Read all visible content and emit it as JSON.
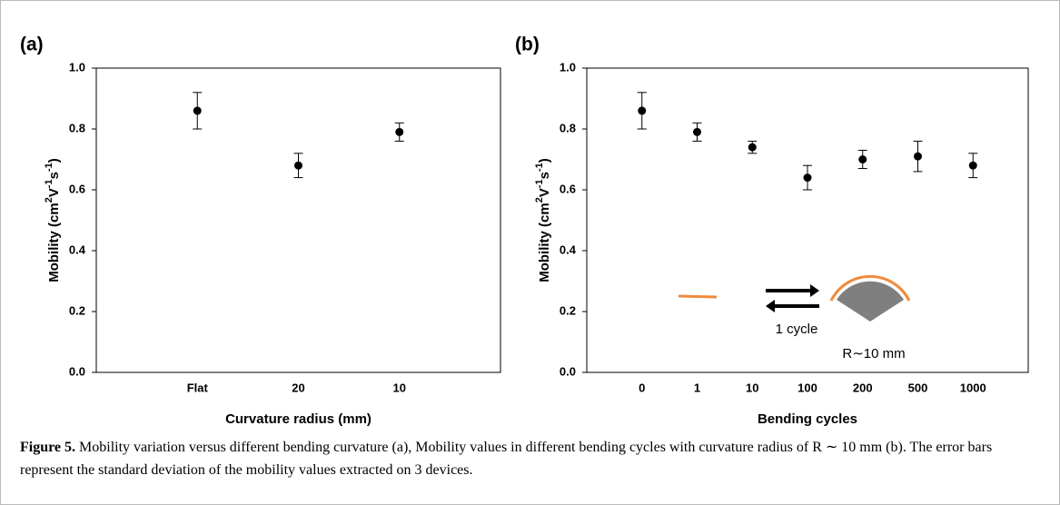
{
  "chart_data": [
    {
      "type": "scatter",
      "panel_label": "(a)",
      "xlabel": "Curvature radius (mm)",
      "ylabel": [
        "Mobility (cm",
        "2",
        "V",
        "-1",
        "s",
        "-1",
        ")"
      ],
      "categories": [
        "Flat",
        "20",
        "10"
      ],
      "values": [
        0.86,
        0.68,
        0.79
      ],
      "errors": [
        0.06,
        0.04,
        0.03
      ],
      "color": "#000000",
      "ylim": [
        0,
        1
      ],
      "yticks": [
        {
          "value": 0,
          "label": "0.0"
        },
        0.2,
        0.4,
        0.6,
        0.8,
        {
          "value": 1,
          "label": "1.0"
        }
      ]
    },
    {
      "type": "scatter",
      "panel_label": "(b)",
      "xlabel": "Bending cycles",
      "ylabel": [
        "Mobility (cm",
        "2",
        "V",
        "-1",
        "s",
        "-1",
        ")"
      ],
      "categories": [
        "0",
        "1",
        "10",
        "100",
        "200",
        "500",
        "1000"
      ],
      "values": [
        0.86,
        0.79,
        0.74,
        0.64,
        0.7,
        0.71,
        0.68
      ],
      "errors": [
        0.06,
        0.03,
        0.02,
        0.04,
        0.03,
        0.05,
        0.04
      ],
      "color": "#000000",
      "ylim": [
        0,
        1
      ],
      "yticks": [
        {
          "value": 0,
          "label": "0.0"
        },
        0.2,
        0.4,
        0.6,
        0.8,
        {
          "value": 1,
          "label": "1.0"
        }
      ],
      "annotations": [
        "1 cycle",
        "R∼10 mm"
      ]
    }
  ],
  "caption": {
    "label": "Figure 5.",
    "text": "Mobility variation versus different bending curvature (a), Mobility values in different bending cycles with curvature radius of R ∼ 10 mm (b). The error bars represent the standard deviation of the mobility values extracted on 3 devices."
  }
}
